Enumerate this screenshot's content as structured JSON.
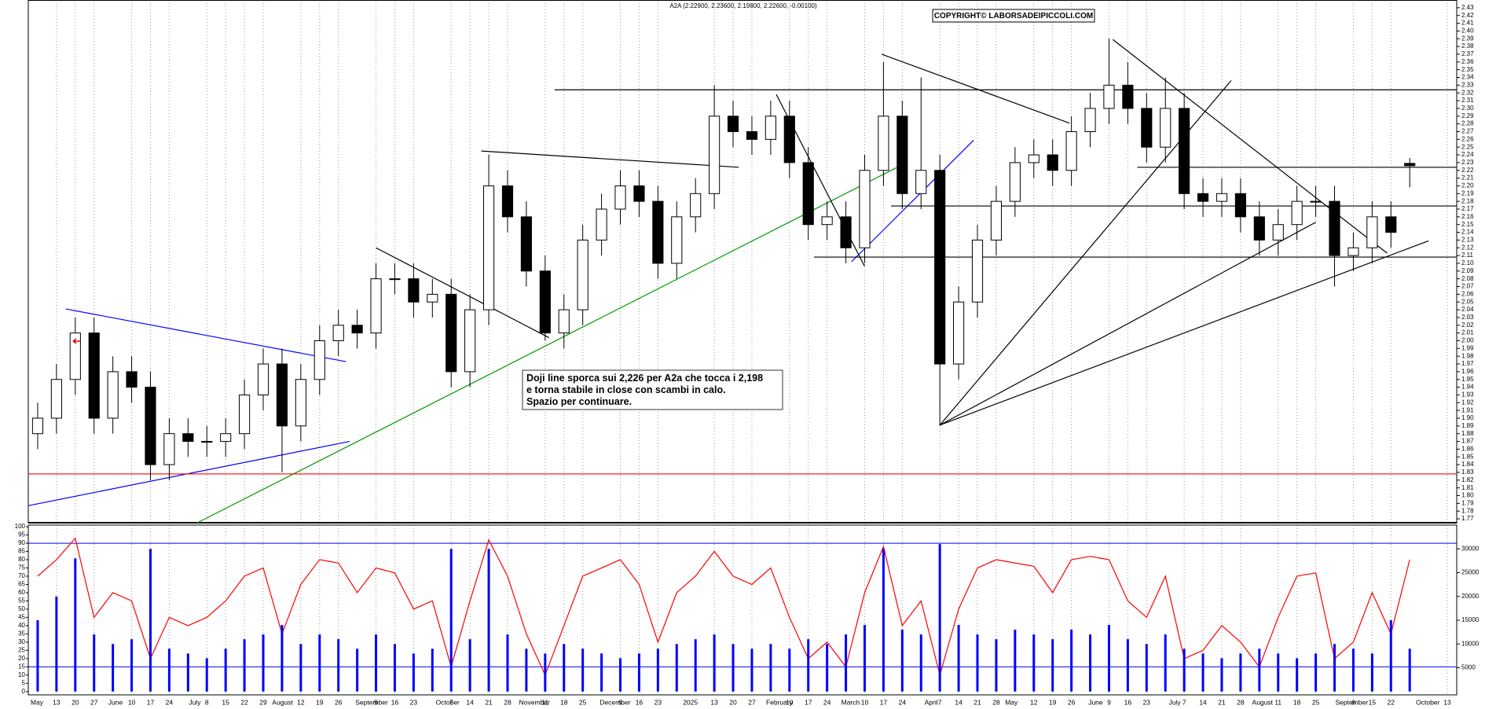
{
  "chart_data": [
    {
      "type": "candlestick",
      "title": "A2A (2.22900, 2.23600, 2.19800, 2.22600, -0.00100)",
      "copyright": "COPYRIGHT© LABORSADEIPICCOLI.COM",
      "annotation": [
        "Doji line sporca sui 2,226 per A2a che tocca i 2,198",
        "e torna stabile in close con scambi in calo.",
        "Spazio per continuare."
      ],
      "xlim": [
        -0.5,
        75.5
      ],
      "ylim": [
        1.765,
        2.44
      ],
      "yticks": [
        1.77,
        1.78,
        1.79,
        {
          "value": 1.8,
          "label": "1.80"
        },
        1.81,
        1.82,
        1.83,
        1.84,
        1.85,
        1.86,
        1.87,
        1.88,
        1.89,
        {
          "value": 1.9,
          "label": "1.90"
        },
        1.91,
        1.92,
        1.93,
        1.94,
        1.95,
        1.96,
        1.97,
        1.98,
        1.99,
        {
          "value": 2,
          "label": "2.00"
        },
        2.01,
        2.02,
        2.03,
        2.04,
        2.05,
        2.06,
        2.07,
        2.08,
        2.09,
        {
          "value": 2.1,
          "label": "2.10"
        },
        2.11,
        2.12,
        2.13,
        2.14,
        2.15,
        2.16,
        2.17,
        2.18,
        2.19,
        {
          "value": 2.2,
          "label": "2.20"
        },
        2.21,
        2.22,
        2.23,
        2.24,
        2.25,
        2.26,
        2.27,
        2.28,
        2.29,
        {
          "value": 2.3,
          "label": "2.30"
        },
        2.31,
        2.32,
        2.33,
        2.34,
        2.35,
        2.36,
        2.37,
        2.38,
        2.39,
        {
          "value": 2.4,
          "label": "2.40"
        },
        2.41,
        2.42,
        2.43
      ],
      "up_color": "#ffffff",
      "down_color": "#000000",
      "open": [
        1.88,
        1.9,
        1.95,
        2.01,
        1.9,
        1.96,
        1.94,
        1.84,
        1.88,
        1.87,
        1.87,
        1.88,
        1.93,
        1.97,
        1.89,
        1.95,
        2.0,
        2.02,
        2.01,
        2.08,
        2.08,
        2.05,
        2.06,
        1.96,
        2.04,
        2.2,
        2.16,
        2.09,
        2.01,
        2.04,
        2.13,
        2.17,
        2.2,
        2.18,
        2.1,
        2.16,
        2.19,
        2.29,
        2.27,
        2.26,
        2.29,
        2.23,
        2.15,
        2.16,
        2.12,
        2.22,
        2.29,
        2.19,
        2.22,
        1.97,
        2.05,
        2.13,
        2.18,
        2.23,
        2.24,
        2.22,
        2.27,
        2.3,
        2.33,
        2.3,
        2.25,
        2.3,
        2.19,
        2.18,
        2.19,
        2.16,
        2.13,
        2.15,
        2.18,
        2.18,
        2.11,
        2.12,
        2.16,
        2.229
      ],
      "high": [
        1.92,
        1.97,
        2.03,
        2.03,
        1.98,
        1.98,
        1.96,
        1.9,
        1.9,
        1.89,
        1.9,
        1.95,
        1.99,
        1.99,
        1.97,
        2.02,
        2.04,
        2.04,
        2.1,
        2.1,
        2.1,
        2.08,
        2.08,
        2.06,
        2.24,
        2.22,
        2.18,
        2.11,
        2.06,
        2.15,
        2.19,
        2.22,
        2.22,
        2.2,
        2.18,
        2.21,
        2.33,
        2.31,
        2.29,
        2.31,
        2.31,
        2.25,
        2.18,
        2.18,
        2.24,
        2.36,
        2.31,
        2.34,
        2.24,
        2.07,
        2.15,
        2.2,
        2.25,
        2.26,
        2.26,
        2.29,
        2.32,
        2.39,
        2.36,
        2.32,
        2.34,
        2.32,
        2.21,
        2.21,
        2.21,
        2.18,
        2.17,
        2.2,
        2.2,
        2.2,
        2.14,
        2.18,
        2.18,
        2.236
      ],
      "low": [
        1.86,
        1.88,
        1.93,
        1.88,
        1.88,
        1.92,
        1.82,
        1.82,
        1.85,
        1.85,
        1.85,
        1.86,
        1.91,
        1.83,
        1.87,
        1.93,
        1.98,
        1.99,
        1.99,
        2.06,
        2.03,
        2.03,
        1.94,
        1.94,
        2.02,
        2.14,
        2.07,
        2.0,
        1.99,
        2.02,
        2.11,
        2.15,
        2.16,
        2.08,
        2.08,
        2.14,
        2.17,
        2.25,
        2.24,
        2.24,
        2.21,
        2.13,
        2.13,
        2.1,
        2.1,
        2.2,
        2.17,
        2.17,
        1.89,
        1.95,
        2.03,
        2.11,
        2.16,
        2.21,
        2.2,
        2.2,
        2.25,
        2.28,
        2.28,
        2.23,
        2.23,
        2.17,
        2.16,
        2.16,
        2.14,
        2.11,
        2.11,
        2.13,
        2.16,
        2.07,
        2.09,
        2.1,
        2.12,
        2.198
      ],
      "close": [
        1.9,
        1.95,
        2.01,
        1.9,
        1.96,
        1.94,
        1.84,
        1.88,
        1.87,
        1.87,
        1.88,
        1.93,
        1.97,
        1.89,
        1.95,
        2.0,
        2.02,
        2.01,
        2.08,
        2.08,
        2.05,
        2.06,
        1.96,
        2.04,
        2.2,
        2.16,
        2.09,
        2.01,
        2.04,
        2.13,
        2.17,
        2.2,
        2.18,
        2.1,
        2.16,
        2.19,
        2.29,
        2.27,
        2.26,
        2.29,
        2.23,
        2.15,
        2.16,
        2.12,
        2.22,
        2.29,
        2.19,
        2.22,
        1.97,
        2.05,
        2.13,
        2.18,
        2.23,
        2.24,
        2.22,
        2.27,
        2.3,
        2.33,
        2.3,
        2.25,
        2.3,
        2.19,
        2.18,
        2.19,
        2.16,
        2.13,
        2.15,
        2.18,
        2.18,
        2.11,
        2.12,
        2.16,
        2.14,
        2.226
      ],
      "lines": [
        {
          "color": "#0000ff",
          "points": [
            [
              -0.5,
              1.787
            ],
            [
              16.6,
              1.87
            ]
          ]
        },
        {
          "color": "#0000ff",
          "points": [
            [
              1.5,
              2.041
            ],
            [
              16.4,
              1.973
            ]
          ]
        },
        {
          "color": "#009900",
          "points": [
            [
              8.5,
              1.765
            ],
            [
              45.9,
              2.226
            ]
          ]
        },
        {
          "color": "#000000",
          "points": [
            [
              18.0,
              2.12
            ],
            [
              27.2,
              2.004
            ]
          ]
        },
        {
          "color": "#000000",
          "points": [
            [
              23.6,
              2.245
            ],
            [
              37.3,
              2.224
            ]
          ]
        },
        {
          "color": "#000000",
          "points": [
            [
              39.3,
              2.318
            ],
            [
              44.0,
              2.096
            ]
          ]
        },
        {
          "color": "#0000ff",
          "points": [
            [
              43.3,
              2.102
            ],
            [
              49.8,
              2.259
            ]
          ]
        },
        {
          "color": "#000000",
          "points": [
            [
              44.9,
              2.37
            ],
            [
              54.9,
              2.281
            ]
          ]
        },
        {
          "color": "#000000",
          "points": [
            [
              57.2,
              2.389
            ],
            [
              71.8,
              2.113
            ]
          ]
        },
        {
          "color": "#000000",
          "points": [
            [
              48.0,
              1.891
            ],
            [
              63.5,
              2.336
            ]
          ]
        },
        {
          "color": "#000000",
          "points": [
            [
              48.0,
              1.891
            ],
            [
              68.0,
              2.153
            ]
          ]
        },
        {
          "color": "#000000",
          "points": [
            [
              48.0,
              1.891
            ],
            [
              74.0,
              2.129
            ]
          ]
        },
        {
          "color": "#000000",
          "points": [
            [
              27.5,
              2.324
            ],
            [
              75.5,
              2.324
            ]
          ]
        },
        {
          "color": "#000000",
          "points": [
            [
              58.5,
              2.224
            ],
            [
              75.5,
              2.224
            ]
          ]
        },
        {
          "color": "#000000",
          "points": [
            [
              45.4,
              2.174
            ],
            [
              75.5,
              2.174
            ]
          ]
        },
        {
          "color": "#000000",
          "points": [
            [
              41.3,
              2.108
            ],
            [
              75.5,
              2.108
            ]
          ]
        },
        {
          "color": "#ff0000",
          "points": [
            [
              -0.5,
              1.828
            ],
            [
              75.5,
              1.828
            ]
          ]
        }
      ]
    },
    {
      "type": "combo",
      "xlim": [
        -0.5,
        75.5
      ],
      "ylim": [
        -2,
        101
      ],
      "yticks": [
        0,
        5,
        10,
        15,
        20,
        25,
        30,
        35,
        40,
        45,
        50,
        55,
        60,
        65,
        70,
        75,
        80,
        85,
        90,
        95,
        100
      ],
      "y2lim": [
        -700,
        35000
      ],
      "y2ticks": [
        5000,
        10000,
        15000,
        20000,
        25000,
        30000
      ],
      "grid": true,
      "hlines": [
        90,
        15
      ],
      "hline_color": "#0000ff",
      "xticks": [
        {
          "value": 1,
          "label": "13"
        },
        {
          "value": 2,
          "label": "20"
        },
        {
          "value": 3,
          "label": "27"
        },
        {
          "value": 5,
          "label": "10"
        },
        {
          "value": 6,
          "label": "17"
        },
        {
          "value": 7,
          "label": "24"
        },
        {
          "value": 9,
          "label": "8"
        },
        {
          "value": 10,
          "label": "15"
        },
        {
          "value": 11,
          "label": "22"
        },
        {
          "value": 12,
          "label": "29"
        },
        {
          "value": 14,
          "label": "12"
        },
        {
          "value": 15,
          "label": "19"
        },
        {
          "value": 16,
          "label": "26"
        },
        {
          "value": 18,
          "label": "9"
        },
        {
          "value": 19,
          "label": "16"
        },
        {
          "value": 20,
          "label": "23"
        },
        {
          "value": 22,
          "label": "7"
        },
        {
          "value": 23,
          "label": "14"
        },
        {
          "value": 24,
          "label": "21"
        },
        {
          "value": 25,
          "label": "28"
        },
        {
          "value": 27,
          "label": "11"
        },
        {
          "value": 28,
          "label": "18"
        },
        {
          "value": 29,
          "label": "25"
        },
        {
          "value": 31,
          "label": "9"
        },
        {
          "value": 32,
          "label": "16"
        },
        {
          "value": 33,
          "label": "23"
        },
        {
          "value": 36,
          "label": "13"
        },
        {
          "value": 37,
          "label": "20"
        },
        {
          "value": 38,
          "label": "27"
        },
        {
          "value": 40,
          "label": "10"
        },
        {
          "value": 41,
          "label": "17"
        },
        {
          "value": 42,
          "label": "24"
        },
        {
          "value": 44,
          "label": "10"
        },
        {
          "value": 45,
          "label": "17"
        },
        {
          "value": 46,
          "label": "24"
        },
        {
          "value": 48,
          "label": "7"
        },
        {
          "value": 49,
          "label": "14"
        },
        {
          "value": 50,
          "label": "21"
        },
        {
          "value": 51,
          "label": "28"
        },
        {
          "value": 53,
          "label": "12"
        },
        {
          "value": 54,
          "label": "19"
        },
        {
          "value": 55,
          "label": "26"
        },
        {
          "value": 57,
          "label": "9"
        },
        {
          "value": 58,
          "label": "16"
        },
        {
          "value": 59,
          "label": "23"
        },
        {
          "value": 61,
          "label": "7"
        },
        {
          "value": 62,
          "label": "14"
        },
        {
          "value": 63,
          "label": "21"
        },
        {
          "value": 64,
          "label": "28"
        },
        {
          "value": 66,
          "label": "11"
        },
        {
          "value": 67,
          "label": "18"
        },
        {
          "value": 68,
          "label": "25"
        },
        {
          "value": 70,
          "label": "8"
        },
        {
          "value": 71,
          "label": "15"
        },
        {
          "value": 72,
          "label": "22"
        },
        {
          "value": 75,
          "label": "13"
        }
      ],
      "month_ticks": [
        {
          "value": -0.71,
          "label": "May"
        },
        {
          "value": 3.71,
          "label": "June"
        },
        {
          "value": 8,
          "label": "July"
        },
        {
          "value": 12.43,
          "label": "August"
        },
        {
          "value": 16.86,
          "label": "September"
        },
        {
          "value": 21.14,
          "label": "October"
        },
        {
          "value": 25.57,
          "label": "November"
        },
        {
          "value": 29.86,
          "label": "December"
        },
        {
          "value": 34.29,
          "label": "2025"
        },
        {
          "value": 38.71,
          "label": "February"
        },
        {
          "value": 42.71,
          "label": "March"
        },
        {
          "value": 47.14,
          "label": "April"
        },
        {
          "value": 51.43,
          "label": "May"
        },
        {
          "value": 55.86,
          "label": "June"
        },
        {
          "value": 60.14,
          "label": "July"
        },
        {
          "value": 64.57,
          "label": "August"
        },
        {
          "value": 69,
          "label": "September"
        },
        {
          "value": 73.29,
          "label": "October"
        }
      ],
      "series": [
        {
          "type": "line",
          "color": "#ff0000",
          "values": [
            70,
            80,
            93,
            45,
            60,
            55,
            20,
            45,
            40,
            45,
            55,
            70,
            75,
            35,
            65,
            80,
            78,
            60,
            75,
            72,
            50,
            55,
            15,
            55,
            92,
            70,
            35,
            10,
            40,
            70,
            75,
            80,
            65,
            30,
            60,
            70,
            85,
            70,
            65,
            75,
            45,
            20,
            30,
            15,
            60,
            88,
            40,
            55,
            10,
            50,
            75,
            80,
            78,
            76,
            60,
            80,
            82,
            80,
            55,
            45,
            70,
            20,
            25,
            40,
            30,
            15,
            45,
            70,
            72,
            20,
            30,
            60,
            35,
            80
          ]
        },
        {
          "type": "bar",
          "axis": "y2",
          "color": "#0000ff",
          "values": [
            15000,
            20000,
            28000,
            12000,
            10000,
            11000,
            30000,
            9000,
            8000,
            7000,
            9000,
            11000,
            12000,
            14000,
            10000,
            12000,
            11000,
            9000,
            12000,
            10000,
            8000,
            9000,
            30000,
            11000,
            30000,
            12000,
            9000,
            8000,
            10000,
            9000,
            8000,
            7000,
            8000,
            9000,
            10000,
            11000,
            12000,
            10000,
            9000,
            10000,
            9000,
            11000,
            10000,
            12000,
            14000,
            30000,
            13000,
            12000,
            31000,
            14000,
            12000,
            11000,
            13000,
            12000,
            11000,
            13000,
            12000,
            14000,
            11000,
            10000,
            12000,
            9000,
            8000,
            7000,
            8000,
            9000,
            8000,
            7000,
            8000,
            10000,
            9000,
            8000,
            15000,
            9000
          ]
        }
      ]
    }
  ]
}
